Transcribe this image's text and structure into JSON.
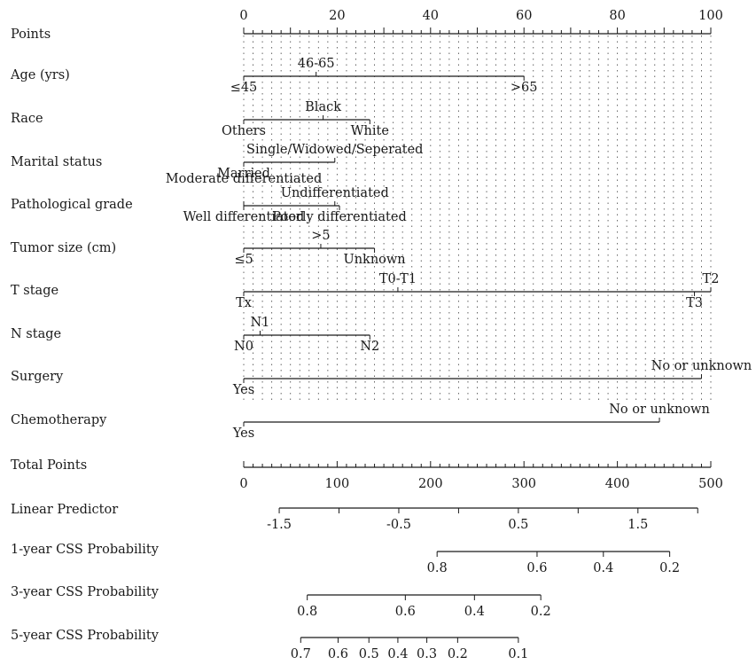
{
  "chart_data": {
    "type": "nomogram",
    "points_axis": {
      "label": "Points",
      "ticks": [
        0,
        20,
        40,
        60,
        80,
        100
      ]
    },
    "variables": [
      {
        "label": "Age (yrs)",
        "levels": [
          {
            "name": "≤45",
            "points": 0,
            "pos": "below"
          },
          {
            "name": "46-65",
            "points": 15.5,
            "pos": "above"
          },
          {
            "name": ">65",
            "points": 60,
            "pos": "below"
          }
        ]
      },
      {
        "label": "Race",
        "levels": [
          {
            "name": "Others",
            "points": 0,
            "pos": "below"
          },
          {
            "name": "Black",
            "points": 17,
            "pos": "above"
          },
          {
            "name": "White",
            "points": 27,
            "pos": "below"
          }
        ]
      },
      {
        "label": "Marital status",
        "levels": [
          {
            "name": "Married",
            "points": 0,
            "pos": "below"
          },
          {
            "name": "Single/Widowed/Seperated",
            "points": 19.5,
            "pos": "above"
          }
        ]
      },
      {
        "label": "Pathological grade",
        "levels": [
          {
            "name": "Well differentiated",
            "points": 0,
            "pos": "below"
          },
          {
            "name": "Moderate differentiated",
            "points": 0,
            "pos": "above"
          },
          {
            "name": "Undifferentiated",
            "points": 19.5,
            "pos": "above"
          },
          {
            "name": "Poorly differentiated",
            "points": 20.5,
            "pos": "below"
          }
        ]
      },
      {
        "label": "Tumor size (cm)",
        "levels": [
          {
            "name": "≤5",
            "points": 0,
            "pos": "below"
          },
          {
            "name": ">5",
            "points": 16.5,
            "pos": "above"
          },
          {
            "name": "Unknown",
            "points": 28,
            "pos": "below"
          }
        ]
      },
      {
        "label": "T stage",
        "levels": [
          {
            "name": "Tx",
            "points": 0,
            "pos": "below"
          },
          {
            "name": "T0-T1",
            "points": 33,
            "pos": "above"
          },
          {
            "name": "T3",
            "points": 96.5,
            "pos": "below"
          },
          {
            "name": "T2",
            "points": 100,
            "pos": "above"
          }
        ]
      },
      {
        "label": "N stage",
        "levels": [
          {
            "name": "N0",
            "points": 0,
            "pos": "below"
          },
          {
            "name": "N1",
            "points": 3.5,
            "pos": "above"
          },
          {
            "name": "N2",
            "points": 27,
            "pos": "below"
          }
        ]
      },
      {
        "label": "Surgery",
        "levels": [
          {
            "name": "Yes",
            "points": 0,
            "pos": "below"
          },
          {
            "name": "No or unknown",
            "points": 98,
            "pos": "above"
          }
        ]
      },
      {
        "label": "Chemotherapy",
        "levels": [
          {
            "name": "Yes",
            "points": 0,
            "pos": "below"
          },
          {
            "name": "No or unknown",
            "points": 89,
            "pos": "above"
          }
        ]
      }
    ],
    "total_points_axis": {
      "label": "Total Points",
      "ticks": [
        0,
        100,
        200,
        300,
        400,
        500
      ]
    },
    "linear_predictor": {
      "label": "Linear Predictor",
      "ticks": [
        {
          "text": "-1.5",
          "total": 38
        },
        {
          "text": "-0.5",
          "total": 166
        },
        {
          "text": "0.5",
          "total": 294
        },
        {
          "text": "1.5",
          "total": 422
        }
      ]
    },
    "probability_scales": [
      {
        "label": "1-year CSS Probability",
        "line_range": [
          207,
          456
        ],
        "ticks": [
          {
            "text": "0.8",
            "total": 207
          },
          {
            "text": "0.6",
            "total": 314
          },
          {
            "text": "0.4",
            "total": 385
          },
          {
            "text": "0.2",
            "total": 456
          }
        ]
      },
      {
        "label": "3-year CSS Probability",
        "line_range": [
          68,
          318
        ],
        "ticks": [
          {
            "text": "0.8",
            "total": 68
          },
          {
            "text": "0.6",
            "total": 173
          },
          {
            "text": "0.4",
            "total": 247
          },
          {
            "text": "0.2",
            "total": 318
          }
        ]
      },
      {
        "label": "5-year CSS Probability",
        "line_range": [
          61,
          294
        ],
        "ticks": [
          {
            "text": "0.7",
            "total": 61
          },
          {
            "text": "0.6",
            "total": 101
          },
          {
            "text": "0.5",
            "total": 134
          },
          {
            "text": "0.4",
            "total": 165
          },
          {
            "text": "0.3",
            "total": 196
          },
          {
            "text": "0.2",
            "total": 229
          },
          {
            "text": "0.1",
            "total": 294
          }
        ]
      }
    ]
  }
}
